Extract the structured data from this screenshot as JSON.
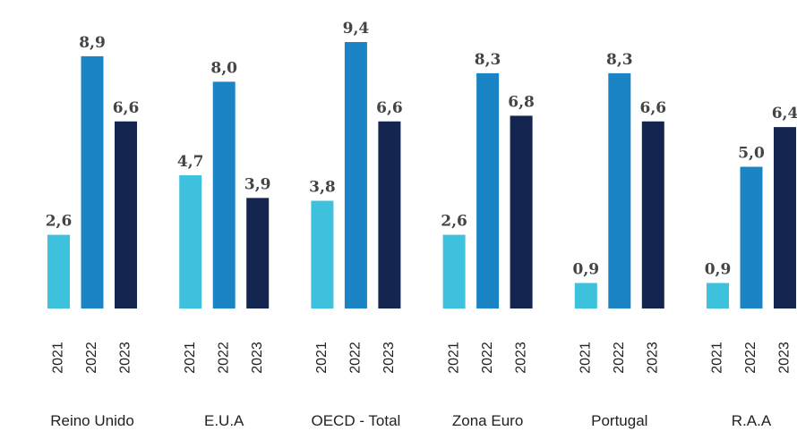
{
  "chart_data": {
    "type": "bar",
    "categories": [
      "Reino Unido",
      "E.U.A",
      "OECD - Total",
      "Zona Euro",
      "Portugal",
      "R.A.A"
    ],
    "series": [
      {
        "name": "2021",
        "color": "#3ec1dc",
        "values": [
          2.6,
          4.7,
          3.8,
          2.6,
          0.9,
          0.9
        ],
        "value_labels": [
          "2,6",
          "4,7",
          "3,8",
          "2,6",
          "0,9",
          "0,9"
        ]
      },
      {
        "name": "2022",
        "color": "#1a84c4",
        "values": [
          8.9,
          8.0,
          9.4,
          8.3,
          8.3,
          5.0
        ],
        "value_labels": [
          "8,9",
          "8,0",
          "9,4",
          "8,3",
          "8,3",
          "5,0"
        ]
      },
      {
        "name": "2023",
        "color": "#14264f",
        "values": [
          6.6,
          3.9,
          6.6,
          6.8,
          6.6,
          6.4
        ],
        "value_labels": [
          "6,6",
          "3,9",
          "6,6",
          "6,8",
          "6,6",
          "6,4"
        ]
      }
    ]
  }
}
